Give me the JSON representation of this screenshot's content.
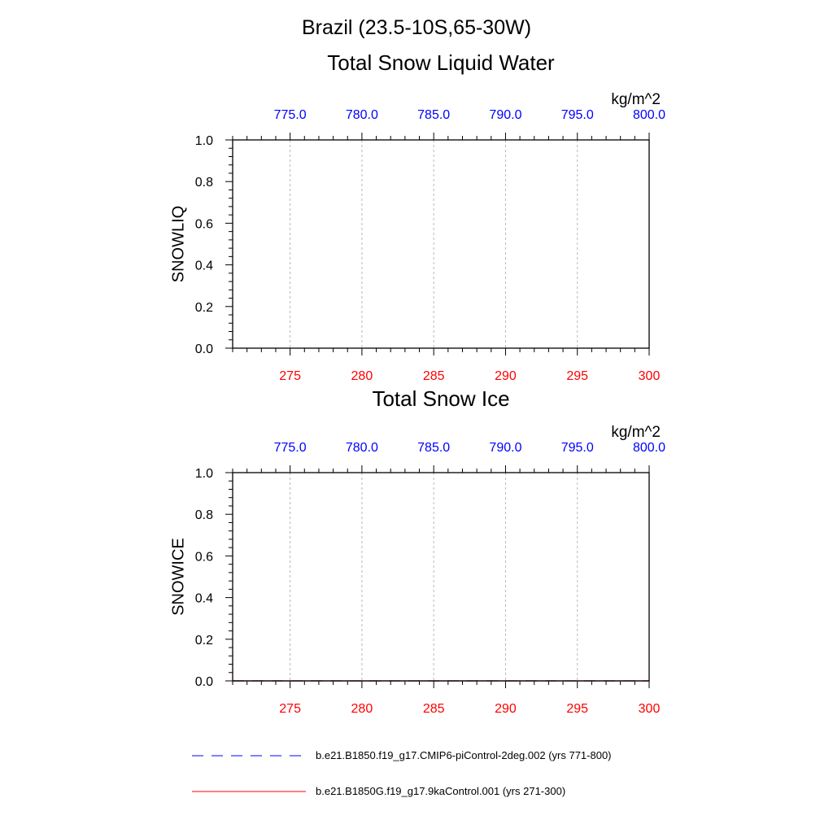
{
  "figure": {
    "title": "Brazil (23.5-10S,65-30W)",
    "legend": [
      {
        "label": "b.e21.B1850.f19_g17.CMIP6-piControl-2deg.002 (yrs 771-800)",
        "color": "#0000ff",
        "dash": "dashed"
      },
      {
        "label": "b.e21.B1850G.f19_g17.9kaControl.001 (yrs 271-300)",
        "color": "#ff0000",
        "dash": "solid"
      }
    ]
  },
  "chart_data": [
    {
      "type": "line",
      "title": "Total Snow Liquid Water",
      "units": "kg/m^2",
      "ylabel": "SNOWLIQ",
      "ylim": [
        0.0,
        1.0
      ],
      "yticks": [
        "0.0",
        "0.2",
        "0.4",
        "0.6",
        "0.8",
        "1.0"
      ],
      "x_bottom": {
        "range": [
          271,
          300
        ],
        "ticks": [
          "275",
          "280",
          "285",
          "290",
          "295",
          "300"
        ],
        "color": "#ff0000"
      },
      "x_top": {
        "range": [
          771,
          800
        ],
        "ticks": [
          "775.0",
          "780.0",
          "785.0",
          "790.0",
          "795.0",
          "800.0"
        ],
        "color": "#0000ff"
      },
      "grid": "vertical dashed at major x ticks",
      "series": []
    },
    {
      "type": "line",
      "title": "Total Snow Ice",
      "units": "kg/m^2",
      "ylabel": "SNOWICE",
      "ylim": [
        0.0,
        1.0
      ],
      "yticks": [
        "0.0",
        "0.2",
        "0.4",
        "0.6",
        "0.8",
        "1.0"
      ],
      "x_bottom": {
        "range": [
          271,
          300
        ],
        "ticks": [
          "275",
          "280",
          "285",
          "290",
          "295",
          "300"
        ],
        "color": "#ff0000"
      },
      "x_top": {
        "range": [
          771,
          800
        ],
        "ticks": [
          "775.0",
          "780.0",
          "785.0",
          "790.0",
          "795.0",
          "800.0"
        ],
        "color": "#0000ff"
      },
      "grid": "vertical dashed at major x ticks",
      "series": [
        {
          "x": [
            771,
            800
          ],
          "y": [
            0.0,
            0.0
          ],
          "color": "#0000ff",
          "dash": "dashed"
        },
        {
          "x": [
            271,
            300
          ],
          "y": [
            0.0,
            0.0
          ],
          "color": "#ff0000",
          "dash": "solid"
        }
      ]
    }
  ]
}
